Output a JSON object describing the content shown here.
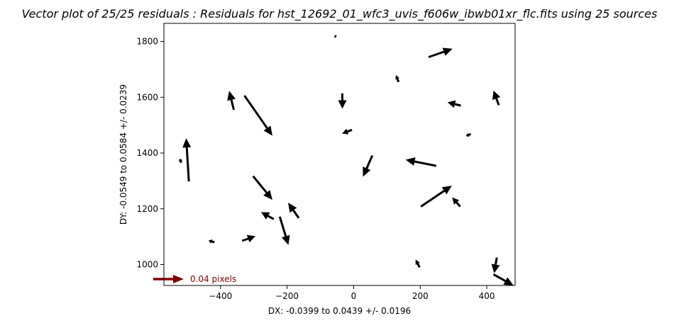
{
  "chart_data": {
    "type": "quiver",
    "title": "Vector plot of 25/25 residuals : Residuals for hst_12692_01_wfc3_uvis_f606w_ibwb01xr_flc.fits using 25 sources",
    "xlabel": "DX: -0.0399 to 0.0439 +/- 0.0196",
    "ylabel": "DY: -0.0549 to 0.0584 +/- 0.0239",
    "xlim": [
      -570,
      485
    ],
    "ylim": [
      925,
      1865
    ],
    "x_ticks": [
      -400,
      -200,
      0,
      200,
      400
    ],
    "y_ticks": [
      1000,
      1200,
      1400,
      1600,
      1800
    ],
    "x_tick_labels": [
      "−400",
      "−200",
      "0",
      "200",
      "400"
    ],
    "y_tick_labels": [
      "1000",
      "1200",
      "1400",
      "1600",
      "1800"
    ],
    "grid": false,
    "arrow_color": "#000000",
    "key": {
      "label": "0.04 pixels",
      "color": "#800000",
      "position": "bottom-left"
    },
    "vectors": [
      {
        "x": -495,
        "y": 1298,
        "u": -8,
        "v": 155
      },
      {
        "x": -518,
        "y": 1365,
        "u": -4,
        "v": 15
      },
      {
        "x": -360,
        "y": 1555,
        "u": -14,
        "v": 68
      },
      {
        "x": -328,
        "y": 1606,
        "u": 84,
        "v": -144
      },
      {
        "x": -302,
        "y": 1317,
        "u": 58,
        "v": -85
      },
      {
        "x": -240,
        "y": 1163,
        "u": -38,
        "v": 25
      },
      {
        "x": -222,
        "y": 1172,
        "u": 26,
        "v": -102
      },
      {
        "x": -165,
        "y": 1167,
        "u": -32,
        "v": 55
      },
      {
        "x": -335,
        "y": 1085,
        "u": 40,
        "v": 17
      },
      {
        "x": -418,
        "y": 1080,
        "u": -18,
        "v": 6
      },
      {
        "x": -52,
        "y": 1817,
        "u": -6,
        "v": 3
      },
      {
        "x": -34,
        "y": 1614,
        "u": 0,
        "v": -55
      },
      {
        "x": -5,
        "y": 1483,
        "u": -30,
        "v": -13
      },
      {
        "x": 56,
        "y": 1391,
        "u": -28,
        "v": -76
      },
      {
        "x": 135,
        "y": 1655,
        "u": -8,
        "v": 25
      },
      {
        "x": 248,
        "y": 1354,
        "u": -92,
        "v": 22
      },
      {
        "x": 202,
        "y": 1208,
        "u": 93,
        "v": 75
      },
      {
        "x": 320,
        "y": 1208,
        "u": -24,
        "v": 33
      },
      {
        "x": 225,
        "y": 1744,
        "u": 72,
        "v": 30
      },
      {
        "x": 322,
        "y": 1570,
        "u": -40,
        "v": 12
      },
      {
        "x": 352,
        "y": 1468,
        "u": -15,
        "v": -7
      },
      {
        "x": 436,
        "y": 1572,
        "u": -16,
        "v": 52
      },
      {
        "x": 430,
        "y": 1025,
        "u": -8,
        "v": -56
      },
      {
        "x": 198,
        "y": 990,
        "u": -12,
        "v": 28
      },
      {
        "x": 420,
        "y": 965,
        "u": 60,
        "v": -40
      }
    ]
  }
}
